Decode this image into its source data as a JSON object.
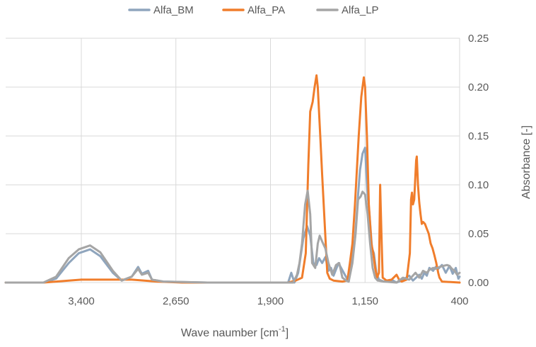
{
  "chart_data": {
    "type": "line",
    "xlabel": "Wave naumber [cm",
    "xlabel_sup": "-1",
    "xlabel_end": "]",
    "ylabel": "Absorbance [-]",
    "x_reversed": true,
    "xlim": [
      4000,
      400
    ],
    "ylim": [
      0,
      0.25
    ],
    "grid": true,
    "legend_position": "top",
    "x_ticks": [
      {
        "value": 3400,
        "label": "3,400"
      },
      {
        "value": 2650,
        "label": "2,650"
      },
      {
        "value": 1900,
        "label": "1,900"
      },
      {
        "value": 1150,
        "label": "1,150"
      },
      {
        "value": 400,
        "label": "400"
      }
    ],
    "y_ticks": [
      {
        "value": 0,
        "label": "0.00"
      },
      {
        "value": 0.05,
        "label": "0.05"
      },
      {
        "value": 0.1,
        "label": "0.10"
      },
      {
        "value": 0.15,
        "label": "0.15"
      },
      {
        "value": 0.2,
        "label": "0.20"
      },
      {
        "value": 0.25,
        "label": "0.25"
      }
    ],
    "series": [
      {
        "name": "Alfa_BM",
        "color": "#8FA5BD",
        "points": [
          [
            4000,
            0.0
          ],
          [
            3700,
            0.0
          ],
          [
            3600,
            0.004
          ],
          [
            3500,
            0.02
          ],
          [
            3420,
            0.03
          ],
          [
            3330,
            0.034
          ],
          [
            3250,
            0.027
          ],
          [
            3150,
            0.01
          ],
          [
            3080,
            0.002
          ],
          [
            3000,
            0.006
          ],
          [
            2950,
            0.016
          ],
          [
            2920,
            0.009
          ],
          [
            2870,
            0.012
          ],
          [
            2840,
            0.003
          ],
          [
            2750,
            0.001
          ],
          [
            2400,
            0.0
          ],
          [
            1900,
            0.0
          ],
          [
            1760,
            0.0
          ],
          [
            1735,
            0.01
          ],
          [
            1710,
            0.0
          ],
          [
            1680,
            0.01
          ],
          [
            1640,
            0.045
          ],
          [
            1610,
            0.058
          ],
          [
            1585,
            0.048
          ],
          [
            1560,
            0.02
          ],
          [
            1535,
            0.018
          ],
          [
            1515,
            0.025
          ],
          [
            1490,
            0.02
          ],
          [
            1465,
            0.026
          ],
          [
            1440,
            0.012
          ],
          [
            1420,
            0.015
          ],
          [
            1400,
            0.007
          ],
          [
            1360,
            0.02
          ],
          [
            1340,
            0.015
          ],
          [
            1310,
            0.008
          ],
          [
            1280,
            0.001
          ],
          [
            1250,
            0.025
          ],
          [
            1230,
            0.045
          ],
          [
            1205,
            0.09
          ],
          [
            1190,
            0.115
          ],
          [
            1170,
            0.132
          ],
          [
            1150,
            0.138
          ],
          [
            1130,
            0.09
          ],
          [
            1115,
            0.07
          ],
          [
            1095,
            0.035
          ],
          [
            1080,
            0.03
          ],
          [
            1060,
            0.01
          ],
          [
            1040,
            0.003
          ],
          [
            1000,
            0.001
          ],
          [
            940,
            0.003
          ],
          [
            900,
            0.0
          ],
          [
            860,
            0.002
          ],
          [
            800,
            0.007
          ],
          [
            770,
            0.002
          ],
          [
            720,
            0.008
          ],
          [
            700,
            0.004
          ],
          [
            680,
            0.01
          ],
          [
            660,
            0.007
          ],
          [
            640,
            0.015
          ],
          [
            610,
            0.012
          ],
          [
            590,
            0.016
          ],
          [
            570,
            0.014
          ],
          [
            540,
            0.018
          ],
          [
            510,
            0.01
          ],
          [
            480,
            0.017
          ],
          [
            455,
            0.009
          ],
          [
            430,
            0.015
          ],
          [
            410,
            0.004
          ],
          [
            400,
            0.006
          ]
        ]
      },
      {
        "name": "Alfa_PA",
        "color": "#F07D2B",
        "points": [
          [
            4000,
            0.0
          ],
          [
            3700,
            0.0
          ],
          [
            3500,
            0.002
          ],
          [
            3400,
            0.003
          ],
          [
            3200,
            0.003
          ],
          [
            3000,
            0.003
          ],
          [
            2900,
            0.002
          ],
          [
            2800,
            0.001
          ],
          [
            2600,
            0.0
          ],
          [
            1760,
            0.0
          ],
          [
            1700,
            0.002
          ],
          [
            1650,
            0.005
          ],
          [
            1620,
            0.03
          ],
          [
            1600,
            0.12
          ],
          [
            1585,
            0.175
          ],
          [
            1565,
            0.185
          ],
          [
            1550,
            0.2
          ],
          [
            1535,
            0.212
          ],
          [
            1525,
            0.2
          ],
          [
            1505,
            0.15
          ],
          [
            1490,
            0.11
          ],
          [
            1470,
            0.06
          ],
          [
            1450,
            0.01
          ],
          [
            1430,
            0.004
          ],
          [
            1400,
            0.002
          ],
          [
            1330,
            0.001
          ],
          [
            1290,
            0.002
          ],
          [
            1270,
            0.02
          ],
          [
            1250,
            0.04
          ],
          [
            1230,
            0.08
          ],
          [
            1200,
            0.15
          ],
          [
            1180,
            0.19
          ],
          [
            1160,
            0.21
          ],
          [
            1150,
            0.2
          ],
          [
            1135,
            0.15
          ],
          [
            1120,
            0.08
          ],
          [
            1100,
            0.04
          ],
          [
            1085,
            0.03
          ],
          [
            1070,
            0.015
          ],
          [
            1055,
            0.005
          ],
          [
            1040,
            0.01
          ],
          [
            1030,
            0.1
          ],
          [
            1020,
            0.05
          ],
          [
            1010,
            0.005
          ],
          [
            980,
            0.002
          ],
          [
            940,
            0.003
          ],
          [
            900,
            0.008
          ],
          [
            880,
            0.003
          ],
          [
            860,
            0.001
          ],
          [
            820,
            0.003
          ],
          [
            795,
            0.03
          ],
          [
            785,
            0.085
          ],
          [
            778,
            0.092
          ],
          [
            770,
            0.08
          ],
          [
            760,
            0.085
          ],
          [
            745,
            0.125
          ],
          [
            740,
            0.129
          ],
          [
            730,
            0.1
          ],
          [
            720,
            0.082
          ],
          [
            710,
            0.07
          ],
          [
            700,
            0.06
          ],
          [
            690,
            0.062
          ],
          [
            675,
            0.06
          ],
          [
            660,
            0.055
          ],
          [
            645,
            0.05
          ],
          [
            630,
            0.04
          ],
          [
            615,
            0.035
          ],
          [
            600,
            0.028
          ],
          [
            585,
            0.02
          ],
          [
            570,
            0.01
          ],
          [
            560,
            0.005
          ],
          [
            540,
            0.001
          ],
          [
            400,
            0.0
          ]
        ]
      },
      {
        "name": "Alfa_LP",
        "color": "#A5A5A5",
        "points": [
          [
            4000,
            0.0
          ],
          [
            3700,
            0.0
          ],
          [
            3600,
            0.006
          ],
          [
            3500,
            0.025
          ],
          [
            3420,
            0.034
          ],
          [
            3330,
            0.038
          ],
          [
            3250,
            0.031
          ],
          [
            3150,
            0.012
          ],
          [
            3080,
            0.002
          ],
          [
            3000,
            0.006
          ],
          [
            2950,
            0.014
          ],
          [
            2920,
            0.008
          ],
          [
            2870,
            0.01
          ],
          [
            2840,
            0.003
          ],
          [
            2750,
            0.001
          ],
          [
            2400,
            0.0
          ],
          [
            1900,
            0.0
          ],
          [
            1720,
            0.0
          ],
          [
            1690,
            0.008
          ],
          [
            1670,
            0.02
          ],
          [
            1650,
            0.04
          ],
          [
            1625,
            0.08
          ],
          [
            1605,
            0.094
          ],
          [
            1585,
            0.07
          ],
          [
            1570,
            0.02
          ],
          [
            1545,
            0.015
          ],
          [
            1525,
            0.04
          ],
          [
            1510,
            0.048
          ],
          [
            1490,
            0.042
          ],
          [
            1465,
            0.035
          ],
          [
            1440,
            0.02
          ],
          [
            1410,
            0.008
          ],
          [
            1380,
            0.018
          ],
          [
            1355,
            0.02
          ],
          [
            1330,
            0.005
          ],
          [
            1300,
            0.002
          ],
          [
            1280,
            0.001
          ],
          [
            1250,
            0.02
          ],
          [
            1225,
            0.05
          ],
          [
            1205,
            0.085
          ],
          [
            1185,
            0.088
          ],
          [
            1170,
            0.093
          ],
          [
            1150,
            0.09
          ],
          [
            1130,
            0.07
          ],
          [
            1110,
            0.04
          ],
          [
            1090,
            0.015
          ],
          [
            1070,
            0.005
          ],
          [
            1050,
            0.002
          ],
          [
            1000,
            0.001
          ],
          [
            900,
            0.0
          ],
          [
            850,
            0.005
          ],
          [
            800,
            0.003
          ],
          [
            750,
            0.01
          ],
          [
            720,
            0.005
          ],
          [
            690,
            0.012
          ],
          [
            660,
            0.01
          ],
          [
            640,
            0.013
          ],
          [
            610,
            0.015
          ],
          [
            590,
            0.014
          ],
          [
            560,
            0.016
          ],
          [
            530,
            0.017
          ],
          [
            500,
            0.018
          ],
          [
            480,
            0.017
          ],
          [
            460,
            0.014
          ],
          [
            440,
            0.012
          ],
          [
            420,
            0.008
          ],
          [
            400,
            0.01
          ]
        ]
      }
    ]
  }
}
